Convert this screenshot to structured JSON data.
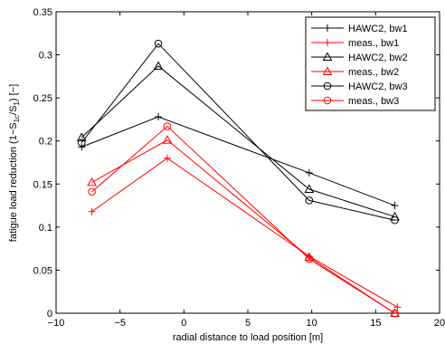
{
  "chart_data": {
    "type": "line",
    "xlabel": "radial distance to load position [m]",
    "ylabel": "fatigue load reduction (1−S",
    "ylabel_sub1": "1c",
    "ylabel_mid": "/S",
    "ylabel_sub2": "1",
    "ylabel_end": ") [−]",
    "xlim": [
      -10,
      20
    ],
    "ylim": [
      0,
      0.35
    ],
    "xticks": [
      "−10",
      "−5",
      "0",
      "5",
      "10",
      "15",
      "20"
    ],
    "yticks": [
      "0",
      "0.05",
      "0.1",
      "0.15",
      "0.2",
      "0.25",
      "0.3",
      "0.35"
    ],
    "xtick_values": [
      -10,
      -5,
      0,
      5,
      10,
      15,
      20
    ],
    "ytick_values": [
      0,
      0.05,
      0.1,
      0.15,
      0.2,
      0.25,
      0.3,
      0.35
    ],
    "grid": false,
    "legend_position": "top-right",
    "series": [
      {
        "name": "HAWC2, bw1",
        "color": "#000000",
        "marker": "plus",
        "x": [
          -8.0,
          -2.0,
          9.8,
          16.5
        ],
        "y": [
          0.193,
          0.228,
          0.163,
          0.125
        ]
      },
      {
        "name": "meas., bw1",
        "color": "#ff0000",
        "marker": "plus",
        "x": [
          -7.2,
          -1.3,
          9.8,
          16.7
        ],
        "y": [
          0.118,
          0.18,
          0.066,
          0.007
        ]
      },
      {
        "name": "HAWC2, bw2",
        "color": "#000000",
        "marker": "triangle",
        "x": [
          -8.0,
          -2.0,
          9.8,
          16.5
        ],
        "y": [
          0.204,
          0.287,
          0.144,
          0.112
        ]
      },
      {
        "name": "meas., bw2",
        "color": "#ff0000",
        "marker": "triangle",
        "x": [
          -7.2,
          -1.3,
          9.8,
          16.5
        ],
        "y": [
          0.152,
          0.201,
          0.065,
          0.0
        ]
      },
      {
        "name": "HAWC2, bw3",
        "color": "#000000",
        "marker": "circle",
        "x": [
          -8.0,
          -2.0,
          9.8,
          16.5
        ],
        "y": [
          0.198,
          0.313,
          0.131,
          0.108
        ]
      },
      {
        "name": "meas., bw3",
        "color": "#ff0000",
        "marker": "circle",
        "x": [
          -7.2,
          -1.3,
          9.8,
          16.5
        ],
        "y": [
          0.141,
          0.217,
          0.063,
          0.0
        ]
      }
    ]
  }
}
